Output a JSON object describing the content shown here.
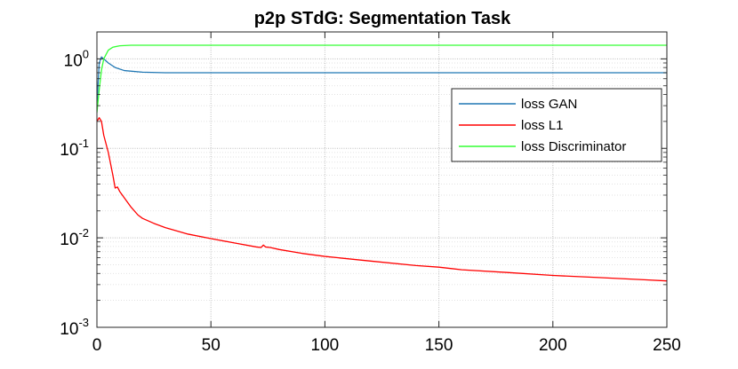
{
  "chart_data": {
    "type": "line",
    "title": "p2p STdG: Segmentation Task",
    "xlabel": "",
    "ylabel": "",
    "xlim": [
      0,
      250
    ],
    "ylim": [
      0.001,
      2
    ],
    "y_scale": "log",
    "grid": true,
    "minor_grid": true,
    "legend_position": "top-right",
    "x_ticks": [
      0,
      50,
      100,
      150,
      200,
      250
    ],
    "y_ticks": [
      {
        "value": 0.001,
        "base": "10",
        "exp": "-3"
      },
      {
        "value": 0.01,
        "base": "10",
        "exp": "-2"
      },
      {
        "value": 0.1,
        "base": "10",
        "exp": "-1"
      },
      {
        "value": 1,
        "base": "10",
        "exp": "0"
      }
    ],
    "series": [
      {
        "name": "loss GAN",
        "color": "#1f77b4",
        "x": [
          0,
          1,
          2,
          3,
          5,
          8,
          12,
          20,
          30,
          50,
          100,
          150,
          200,
          250
        ],
        "y": [
          0.3,
          0.9,
          1.05,
          1.0,
          0.9,
          0.8,
          0.74,
          0.71,
          0.7,
          0.7,
          0.7,
          0.7,
          0.7,
          0.7
        ]
      },
      {
        "name": "loss L1",
        "color": "#ff0000",
        "x": [
          0,
          1,
          2,
          3,
          5,
          7,
          8,
          9,
          10,
          12,
          15,
          18,
          20,
          25,
          30,
          40,
          50,
          60,
          70,
          72,
          73,
          74,
          76,
          80,
          90,
          100,
          120,
          140,
          150,
          160,
          180,
          200,
          220,
          240,
          250
        ],
        "y": [
          0.2,
          0.22,
          0.2,
          0.14,
          0.09,
          0.05,
          0.036,
          0.037,
          0.033,
          0.028,
          0.022,
          0.018,
          0.0165,
          0.0145,
          0.013,
          0.011,
          0.0098,
          0.0088,
          0.0079,
          0.0078,
          0.0083,
          0.0079,
          0.0078,
          0.0074,
          0.0067,
          0.0062,
          0.0055,
          0.0049,
          0.0047,
          0.0044,
          0.0041,
          0.0038,
          0.0036,
          0.0034,
          0.0033
        ]
      },
      {
        "name": "loss Discriminator",
        "color": "#33ff33",
        "x": [
          0,
          1,
          2,
          3,
          4,
          5,
          7,
          10,
          15,
          20,
          50,
          100,
          150,
          200,
          250
        ],
        "y": [
          0.25,
          0.45,
          0.75,
          1.0,
          1.12,
          1.25,
          1.35,
          1.4,
          1.42,
          1.42,
          1.42,
          1.42,
          1.42,
          1.42,
          1.42
        ]
      }
    ]
  }
}
